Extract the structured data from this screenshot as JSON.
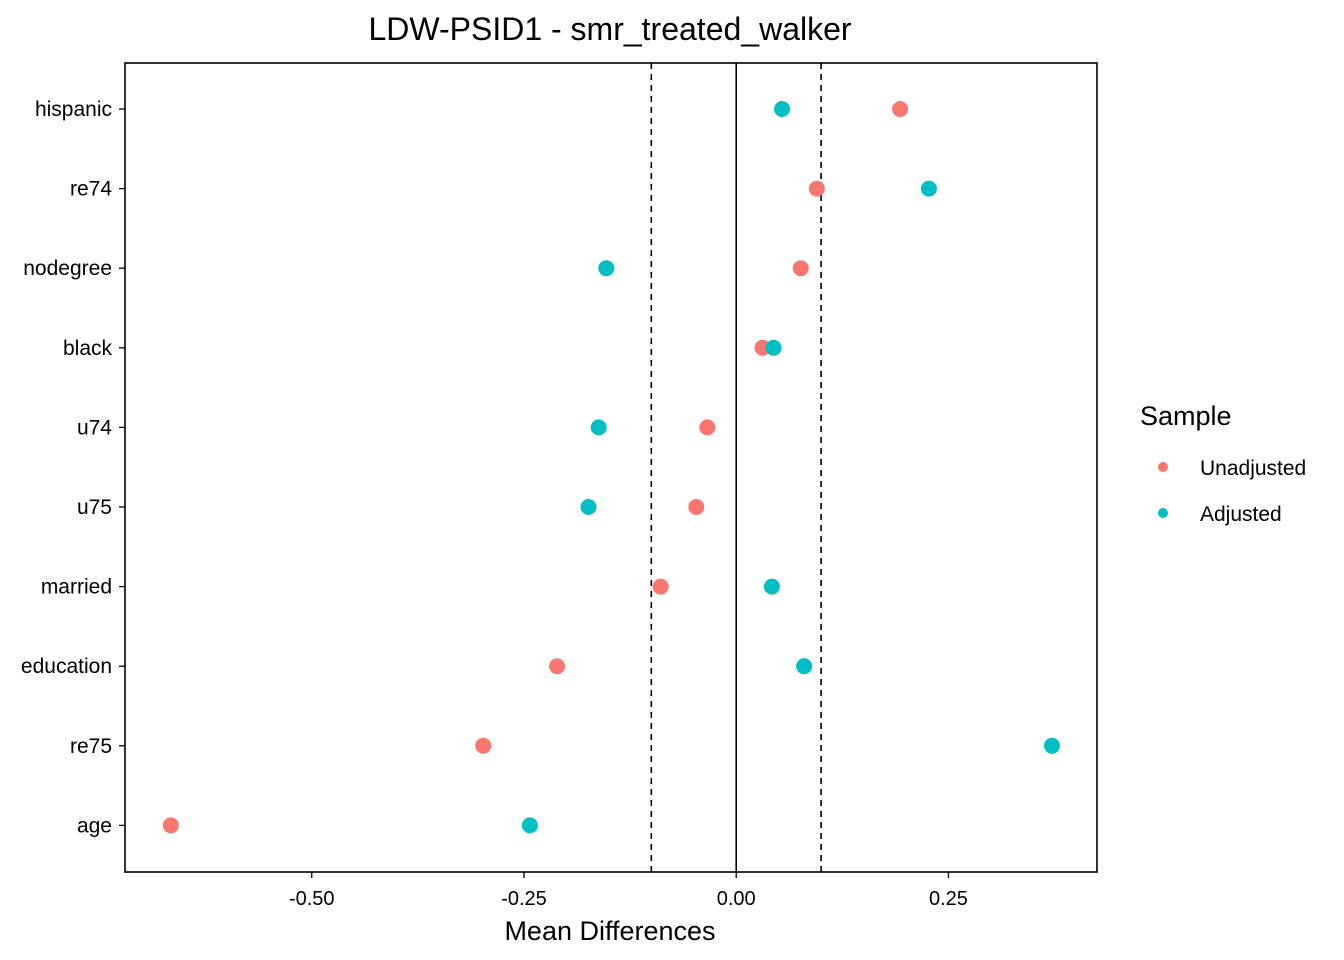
{
  "chart_data": {
    "type": "scatter",
    "title": "LDW-PSID1 - smr_treated_walker",
    "xlabel": "Mean Differences",
    "ylabel": "",
    "categories": [
      "hispanic",
      "re74",
      "nodegree",
      "black",
      "u74",
      "u75",
      "married",
      "education",
      "re75",
      "age"
    ],
    "series": [
      {
        "name": "Unadjusted",
        "color": "#F8766D",
        "values": [
          0.193,
          0.095,
          0.076,
          0.031,
          -0.034,
          -0.047,
          -0.089,
          -0.211,
          -0.298,
          -0.666
        ]
      },
      {
        "name": "Adjusted",
        "color": "#00BFC4",
        "values": [
          0.054,
          0.227,
          -0.153,
          0.044,
          -0.162,
          -0.174,
          0.042,
          0.08,
          0.372,
          -0.243
        ]
      }
    ],
    "xlim": [
      -0.72,
      0.425
    ],
    "xticks": [
      -0.5,
      -0.25,
      0.0,
      0.25
    ],
    "xtick_labels": [
      "-0.50",
      "-0.25",
      "0.00",
      "0.25"
    ],
    "reference_lines": {
      "solid": 0,
      "dashed": [
        -0.1,
        0.1
      ]
    },
    "legend": {
      "title": "Sample",
      "position": "right"
    },
    "grid": false
  }
}
